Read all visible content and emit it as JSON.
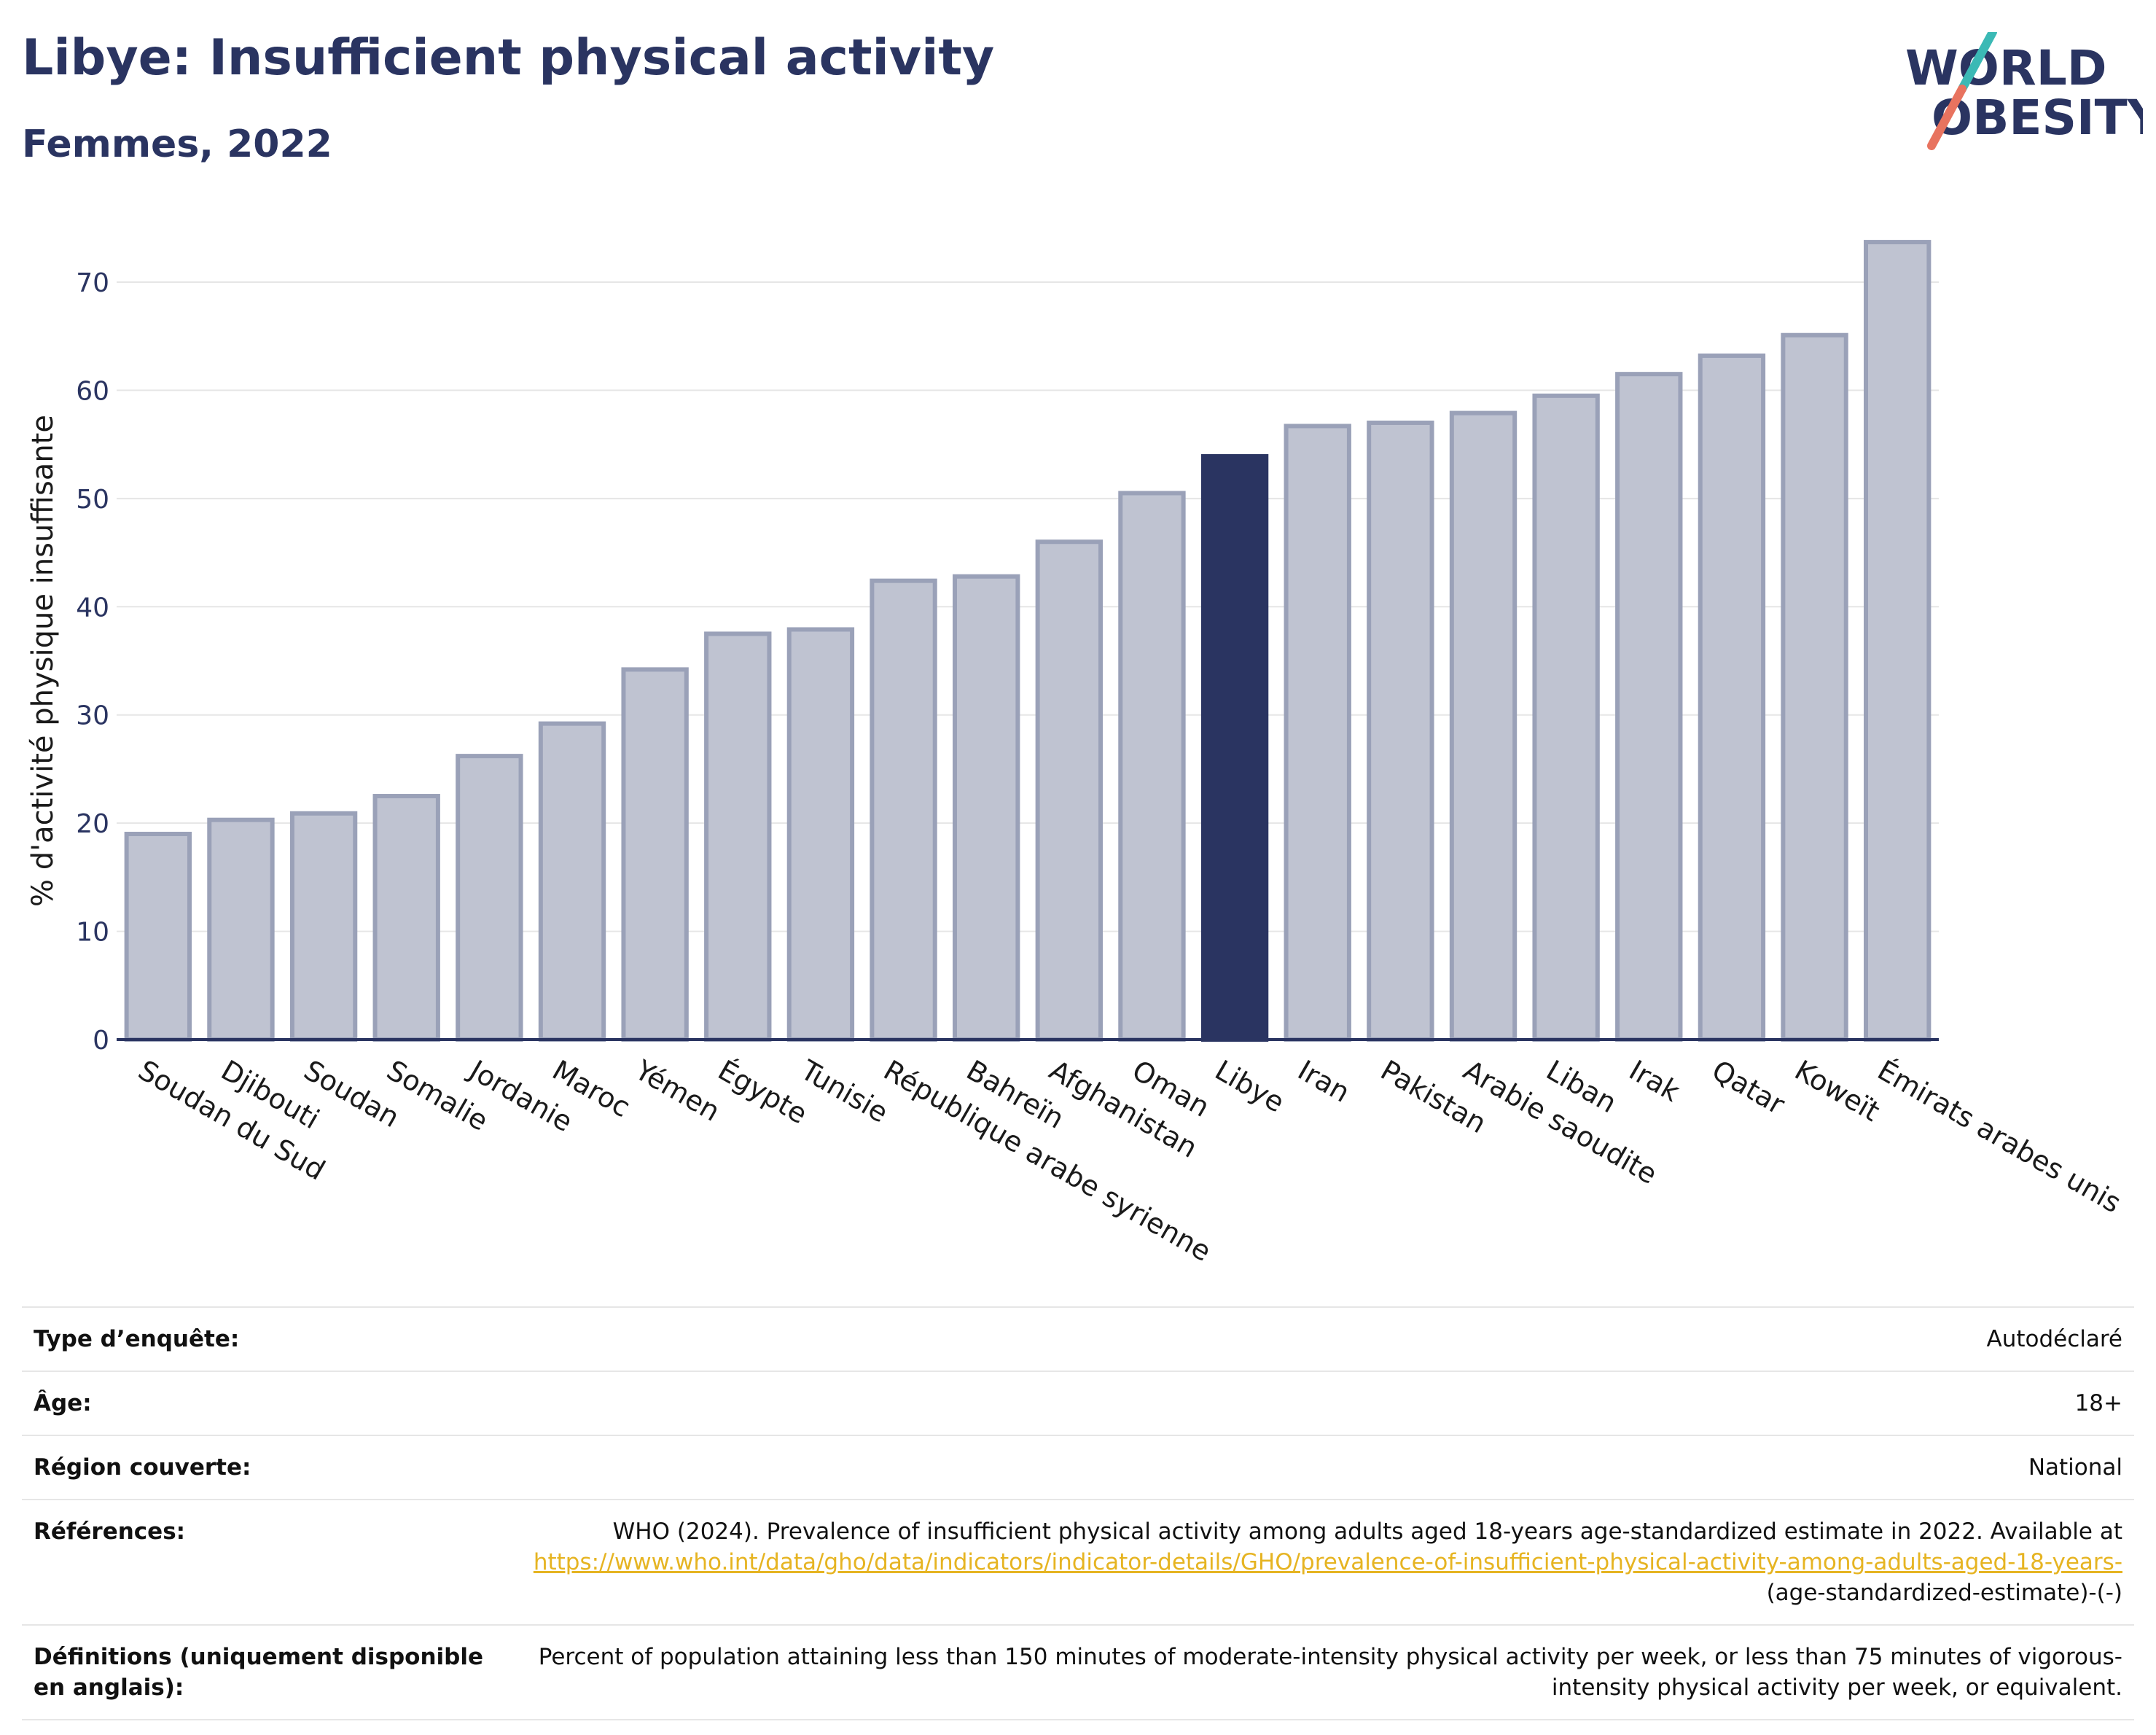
{
  "header": {
    "title": "Libye: Insufficient physical activity",
    "subtitle": "Femmes, 2022",
    "logo_line1": "WORLD",
    "logo_line2": "OBESITY"
  },
  "colors": {
    "bar": "#bfc3d1",
    "bar_outline": "#9aa1b8",
    "highlight": "#2a3461",
    "grid": "#e6e6e6",
    "axis": "#2a3461",
    "logo_teal": "#3bb9b5",
    "logo_coral": "#e8735f",
    "link": "#e6b422"
  },
  "chart_data": {
    "type": "bar",
    "ylabel": "% d'activité physique insuffisante",
    "ylim": [
      0,
      75
    ],
    "yticks": [
      0,
      10,
      20,
      30,
      40,
      50,
      60,
      70
    ],
    "grid": true,
    "highlight": "Libye",
    "categories": [
      "Soudan du Sud",
      "Djibouti",
      "Soudan",
      "Somalie",
      "Jordanie",
      "Maroc",
      "Yémen",
      "Égypte",
      "Tunisie",
      "République arabe syrienne",
      "Bahreïn",
      "Afghanistan",
      "Oman",
      "Libye",
      "Iran",
      "Pakistan",
      "Arabie saoudite",
      "Liban",
      "Irak",
      "Qatar",
      "Koweït",
      "Émirats arabes unis"
    ],
    "values": [
      19.0,
      20.3,
      20.9,
      22.5,
      26.2,
      29.2,
      34.2,
      37.5,
      37.9,
      42.4,
      42.8,
      46.0,
      50.5,
      53.9,
      56.7,
      57.0,
      57.9,
      59.5,
      61.5,
      63.2,
      65.1,
      73.7
    ]
  },
  "info": {
    "rows": [
      {
        "label": "Type d’enquête:",
        "value": "Autodéclaré"
      },
      {
        "label": "Âge:",
        "value": "18+"
      },
      {
        "label": "Région couverte:",
        "value": "National"
      }
    ],
    "references": {
      "label": "Références:",
      "text": "WHO (2024). Prevalence of insufficient physical activity among adults aged 18-years age-standardized estimate in 2022. Available at",
      "link": "https://www.who.int/data/gho/data/indicators/indicator-details/GHO/prevalence-of-insufficient-physical-activity-among-adults-aged-18-years-",
      "suffix": "(age-standardized-estimate)-(-)"
    },
    "definitions": {
      "label": "Définitions (uniquement disponible en anglais):",
      "text": "Percent of population attaining less than 150 minutes of moderate-intensity physical activity per week, or less than 75 minutes of vigorous-intensity physical activity per week, or equivalent."
    }
  }
}
